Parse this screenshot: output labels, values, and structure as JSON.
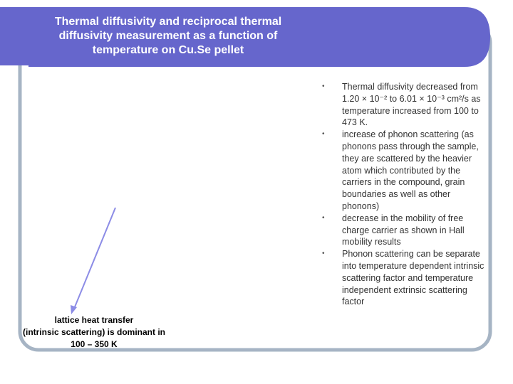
{
  "theme": {
    "accent": "#6666CC",
    "frame_border": "#A6B4C4",
    "arrow": "#8C8CE6"
  },
  "slide": {
    "title": "Thermal diffusivity and reciprocal thermal\ndiffusivity measurement as a function of\ntemperature on Cu.Se pellet",
    "bullets": [
      "Thermal diffusivity decreased from 1.20 × 10⁻² to 6.01 × 10⁻³ cm²/s as temperature increased from 100 to 473 K.",
      "increase of phonon scattering (as phonons pass through the sample, they are scattered by the heavier atom which contributed by the carriers in the compound, grain boundaries as well as other phonons)",
      "decrease in the mobility of free charge carrier as shown in Hall mobility results",
      "Phonon scattering can be separate into temperature dependent intrinsic scattering factor and temperature independent extrinsic scattering factor"
    ],
    "bullet_symbol": "•",
    "caption": "lattice heat transfer\n(intrinsic scattering) is dominant in\n100 – 350 K"
  }
}
